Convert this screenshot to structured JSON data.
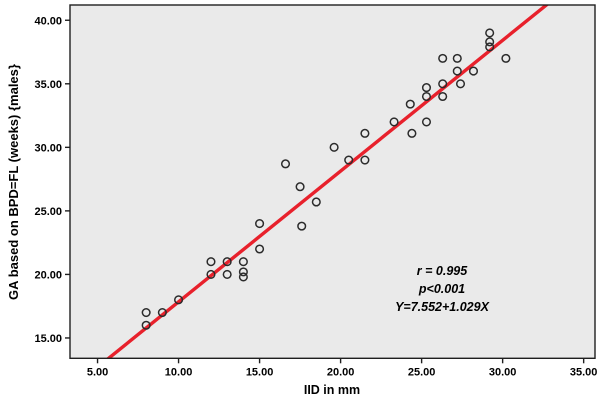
{
  "colors": {
    "page_background": "#ffffff",
    "plot_background": "#eaeaea",
    "frame": "#1f1f1f",
    "regression_line": "#e8212c",
    "point_stroke": "#2b2b2b",
    "text": "#000000"
  },
  "chart_data": {
    "type": "scatter",
    "title": "",
    "xlabel": "IID in mm",
    "ylabel": "GA based on BPD=FL (weeks) {males}",
    "xlim": [
      3.3,
      35.7
    ],
    "ylim": [
      13.4,
      41.2
    ],
    "grid": false,
    "legend": "none",
    "marker": "open-circle",
    "x_ticks": [
      {
        "value": 5,
        "label": "5.00"
      },
      {
        "value": 10,
        "label": "10.00"
      },
      {
        "value": 15,
        "label": "15.00"
      },
      {
        "value": 20,
        "label": "20.00"
      },
      {
        "value": 25,
        "label": "25.00"
      },
      {
        "value": 30,
        "label": "30.00"
      },
      {
        "value": 35,
        "label": "35.00"
      }
    ],
    "y_ticks": [
      {
        "value": 15,
        "label": "15.00"
      },
      {
        "value": 20,
        "label": "20.00"
      },
      {
        "value": 25,
        "label": "25.00"
      },
      {
        "value": 30,
        "label": "30.00"
      },
      {
        "value": 35,
        "label": "35.00"
      },
      {
        "value": 40,
        "label": "40.00"
      }
    ],
    "points": [
      [
        8,
        17
      ],
      [
        8,
        16
      ],
      [
        9,
        17
      ],
      [
        10,
        18
      ],
      [
        12,
        21
      ],
      [
        12,
        20
      ],
      [
        13,
        21
      ],
      [
        13,
        20
      ],
      [
        14,
        21
      ],
      [
        14,
        20.2
      ],
      [
        14,
        19.8
      ],
      [
        15,
        24
      ],
      [
        15,
        22
      ],
      [
        16.6,
        28.7
      ],
      [
        17.5,
        26.9
      ],
      [
        17.6,
        23.8
      ],
      [
        18.5,
        25.7
      ],
      [
        19.6,
        30
      ],
      [
        20.5,
        29
      ],
      [
        21.5,
        29
      ],
      [
        21.5,
        31.1
      ],
      [
        23.3,
        32
      ],
      [
        24.3,
        33.4
      ],
      [
        24.4,
        31.1
      ],
      [
        25.3,
        34.7
      ],
      [
        25.3,
        34
      ],
      [
        25.3,
        32
      ],
      [
        26.3,
        37
      ],
      [
        26.3,
        35
      ],
      [
        26.3,
        34
      ],
      [
        27.2,
        37
      ],
      [
        27.2,
        36
      ],
      [
        27.4,
        35
      ],
      [
        28.2,
        36
      ],
      [
        29.2,
        39
      ],
      [
        29.2,
        38.3
      ],
      [
        29.2,
        37.9
      ],
      [
        30.2,
        37
      ]
    ],
    "regression_line": {
      "slope": 1.029,
      "intercept": 7.552,
      "equation": "Y=7.552+1.029X"
    },
    "annotation": {
      "line1": "r = 0.995",
      "line2": "p<0.001",
      "line3": "Y=7.552+1.029X"
    }
  }
}
